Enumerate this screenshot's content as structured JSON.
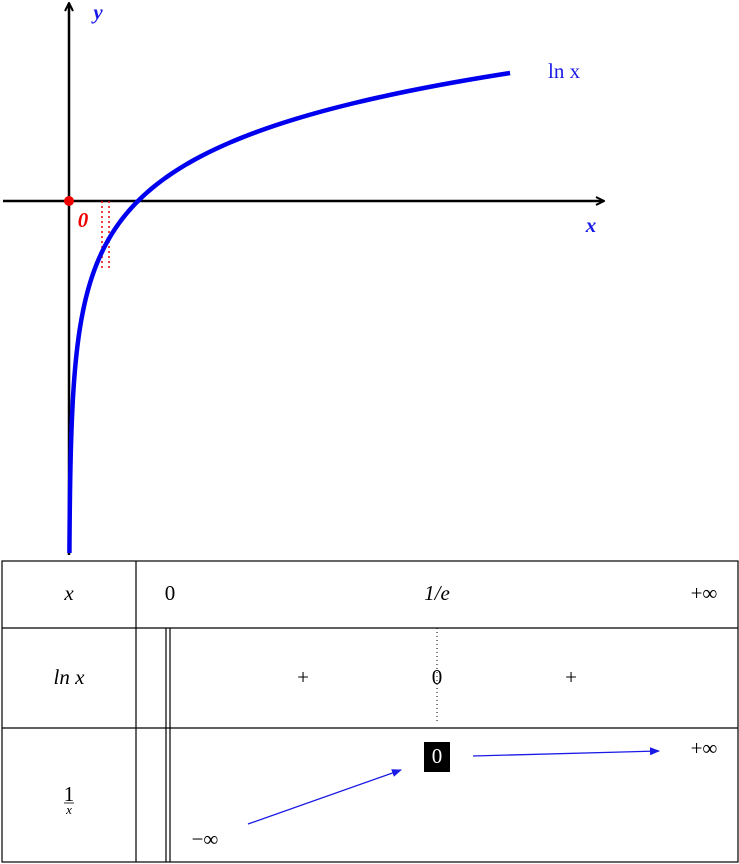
{
  "graph": {
    "y_label": "y",
    "x_label": "x",
    "origin_label": "0",
    "curve_label": "ln x"
  },
  "table": {
    "x_row": {
      "header": "x",
      "values": [
        "0",
        "1/e",
        "+∞"
      ]
    },
    "sign_row": {
      "header": "ln x",
      "values": [
        "+",
        "0",
        "+"
      ]
    },
    "variation_row": {
      "header": {
        "numerator": "1",
        "denominator": "x"
      },
      "values": [
        "−∞",
        "0",
        "+∞"
      ]
    }
  }
}
